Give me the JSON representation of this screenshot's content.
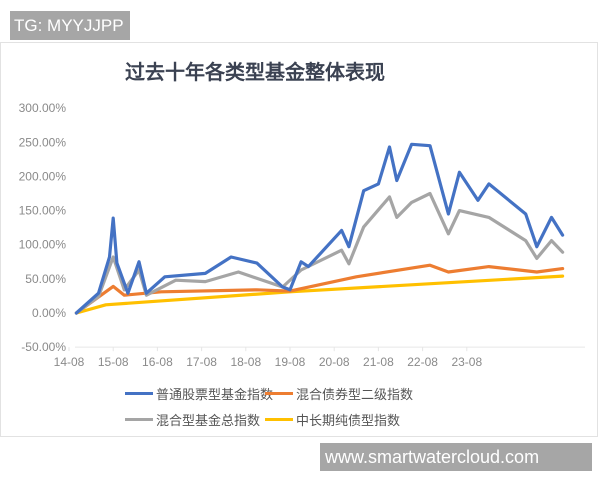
{
  "watermarks": {
    "top": "TG: MYYJJPP",
    "bottom": "www.smartwatercloud.com"
  },
  "chart_data": {
    "type": "line",
    "title": "过去十年各类型基金整体表现",
    "xlabel": "",
    "ylabel": "",
    "ylim": [
      -50,
      300
    ],
    "y_ticks": [
      "300.00%",
      "250.00%",
      "200.00%",
      "150.00%",
      "100.00%",
      "50.00%",
      "0.00%",
      "-50.00%"
    ],
    "y_tick_values": [
      300,
      250,
      200,
      150,
      100,
      50,
      0,
      -50
    ],
    "x_ticks": [
      "14-08",
      "15-08",
      "16-08",
      "17-08",
      "18-08",
      "19-08",
      "20-08",
      "21-08",
      "22-08",
      "23-08"
    ],
    "grid": false,
    "legend_position": "bottom",
    "series": [
      {
        "name": "普通股票型基金指数",
        "color": "#4472c4",
        "points": [
          [
            "2014-10",
            0
          ],
          [
            "2015-04",
            29
          ],
          [
            "2015-07",
            82
          ],
          [
            "2015-08",
            139
          ],
          [
            "2015-09",
            73
          ],
          [
            "2015-12",
            29
          ],
          [
            "2016-03",
            75
          ],
          [
            "2016-05",
            29
          ],
          [
            "2016-10",
            53
          ],
          [
            "2017-09",
            58
          ],
          [
            "2018-04",
            82
          ],
          [
            "2018-11",
            73
          ],
          [
            "2019-06",
            38
          ],
          [
            "2019-08",
            34
          ],
          [
            "2019-11",
            75
          ],
          [
            "2020-01",
            68
          ],
          [
            "2020-10",
            121
          ],
          [
            "2020-12",
            97
          ],
          [
            "2021-04",
            179
          ],
          [
            "2021-08",
            189
          ],
          [
            "2021-11",
            243
          ],
          [
            "2022-01",
            194
          ],
          [
            "2022-05",
            247
          ],
          [
            "2022-10",
            245
          ],
          [
            "2023-03",
            145
          ],
          [
            "2023-06",
            206
          ],
          [
            "2023-11",
            165
          ],
          [
            "2024-02",
            189
          ],
          [
            "2024-12",
            145
          ],
          [
            "2025-03",
            97
          ],
          [
            "2025-07",
            140
          ],
          [
            "2025-10",
            114
          ]
        ]
      },
      {
        "name": "混合债券型二级指数",
        "color": "#ed7d31",
        "points": [
          [
            "2014-10",
            0
          ],
          [
            "2015-08",
            39
          ],
          [
            "2015-11",
            26
          ],
          [
            "2016-09",
            31
          ],
          [
            "2018-11",
            34
          ],
          [
            "2019-08",
            32
          ],
          [
            "2021-02",
            53
          ],
          [
            "2022-10",
            70
          ],
          [
            "2023-03",
            60
          ],
          [
            "2024-02",
            68
          ],
          [
            "2025-03",
            60
          ],
          [
            "2025-10",
            65
          ]
        ]
      },
      {
        "name": "混合型基金总指数",
        "color": "#a5a5a5",
        "points": [
          [
            "2014-10",
            0
          ],
          [
            "2015-04",
            24
          ],
          [
            "2015-08",
            82
          ],
          [
            "2015-11",
            34
          ],
          [
            "2016-03",
            63
          ],
          [
            "2016-05",
            26
          ],
          [
            "2017-01",
            48
          ],
          [
            "2017-09",
            46
          ],
          [
            "2018-06",
            60
          ],
          [
            "2019-06",
            38
          ],
          [
            "2019-11",
            63
          ],
          [
            "2020-10",
            92
          ],
          [
            "2020-12",
            72
          ],
          [
            "2021-04",
            126
          ],
          [
            "2021-11",
            170
          ],
          [
            "2022-01",
            140
          ],
          [
            "2022-05",
            162
          ],
          [
            "2022-10",
            175
          ],
          [
            "2023-03",
            116
          ],
          [
            "2023-06",
            150
          ],
          [
            "2024-02",
            140
          ],
          [
            "2024-12",
            106
          ],
          [
            "2025-03",
            80
          ],
          [
            "2025-07",
            106
          ],
          [
            "2025-10",
            89
          ]
        ]
      },
      {
        "name": "中长期纯债型指数",
        "color": "#ffc000",
        "points": [
          [
            "2014-10",
            0
          ],
          [
            "2015-06",
            12
          ],
          [
            "2019-08",
            31
          ],
          [
            "2025-10",
            54
          ]
        ]
      }
    ]
  }
}
